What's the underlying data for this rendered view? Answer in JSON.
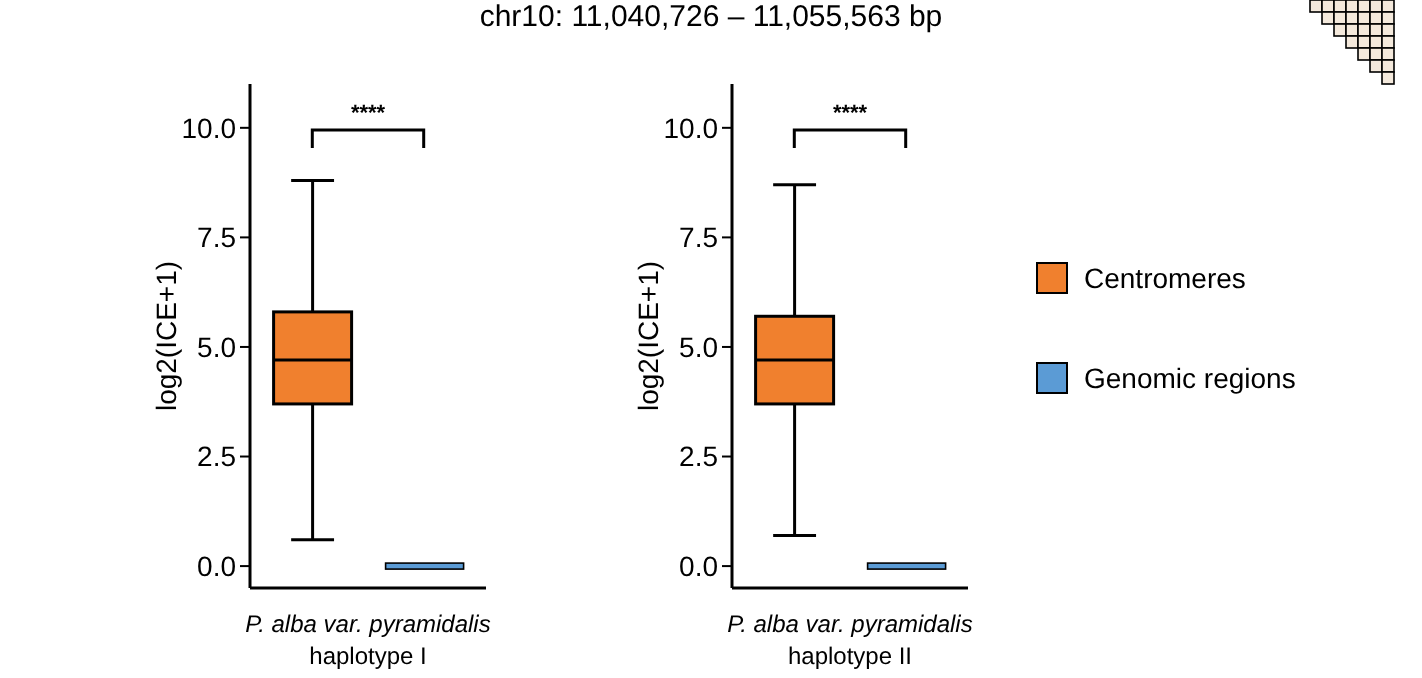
{
  "chart_data": [
    {
      "type": "box",
      "categories": [
        null
      ],
      "xlabel": "P. alba var. pyramidalis\nhaplotype I",
      "ylabel": "log2(ICE+1)",
      "ylim": [
        -0.5,
        11
      ],
      "yticks": [
        {
          "value": 0,
          "label": "0.0"
        },
        {
          "value": 2.5,
          "label": "2.5"
        },
        {
          "value": 5,
          "label": "5.0"
        },
        {
          "value": 7.5,
          "label": "7.5"
        },
        {
          "value": 10,
          "label": "10.0"
        }
      ],
      "annotations": [
        "****"
      ],
      "legend": false,
      "series": [
        {
          "color": "#f0802e",
          "boxes": [
            {
              "low": 0.6,
              "q1": 3.7,
              "median": 4.7,
              "q3": 5.8,
              "high": 8.8
            }
          ]
        },
        {
          "color": "#5b9bd5",
          "boxes": [
            {
              "low": 0,
              "q1": 0,
              "median": 0,
              "q3": 0,
              "high": 0
            }
          ]
        }
      ]
    },
    {
      "type": "box",
      "categories": [
        null
      ],
      "xlabel": "P. alba var. pyramidalis\nhaplotype II",
      "ylabel": "log2(ICE+1)",
      "ylim": [
        -0.5,
        11
      ],
      "yticks": [
        {
          "value": 0,
          "label": "0.0"
        },
        {
          "value": 2.5,
          "label": "2.5"
        },
        {
          "value": 5,
          "label": "5.0"
        },
        {
          "value": 7.5,
          "label": "7.5"
        },
        {
          "value": 10,
          "label": "10.0"
        }
      ],
      "annotations": [
        "****"
      ],
      "legend": "right",
      "series": [
        {
          "name": "Centromeres",
          "color": "#f0802e",
          "boxes": [
            {
              "low": 0.7,
              "q1": 3.7,
              "median": 4.7,
              "q3": 5.7,
              "high": 8.7
            }
          ]
        },
        {
          "name": "Genomic regions",
          "color": "#5b9bd5",
          "boxes": [
            {
              "low": 0,
              "q1": 0,
              "median": 0,
              "q3": 0,
              "high": 0
            }
          ]
        }
      ]
    },
    {
      "type": "other",
      "title": "chr10: 11,040,726 – 11,055,563 bp"
    }
  ]
}
